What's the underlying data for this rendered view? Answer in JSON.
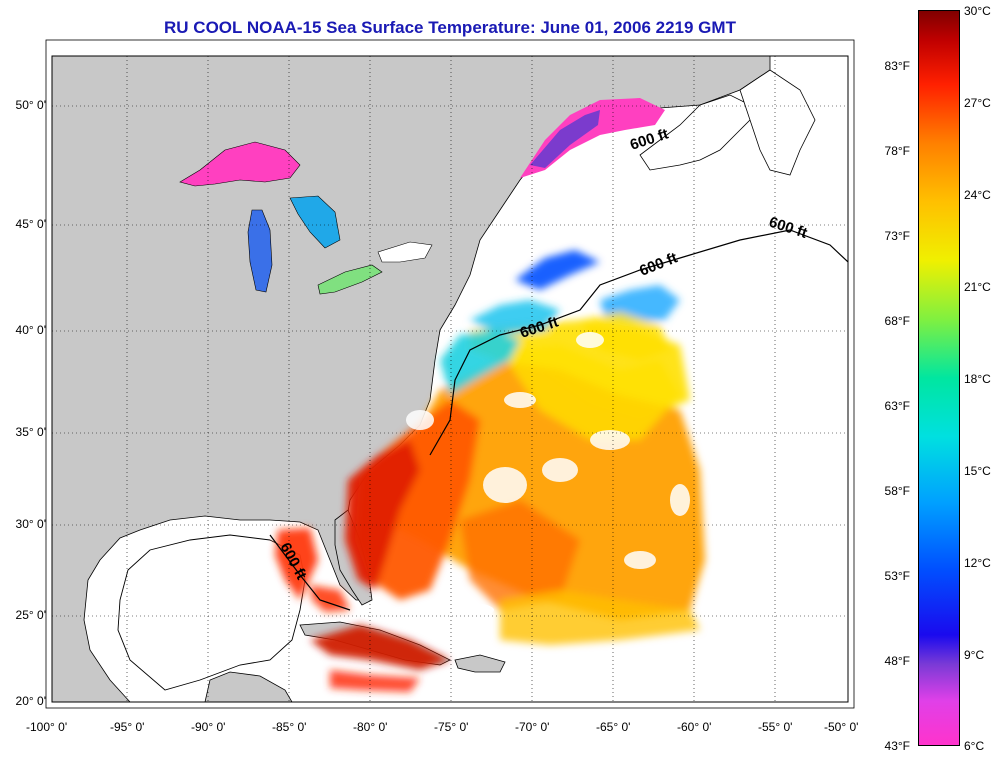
{
  "title": "RU COOL  NOAA-15  Sea Surface Temperature:  June 01, 2006 2219 GMT",
  "lat_labels": [
    "50° 0'",
    "45° 0'",
    "40° 0'",
    "35° 0'",
    "30° 0'",
    "25° 0'",
    "20° 0'"
  ],
  "lon_labels": [
    "-100° 0'",
    "-95° 0'",
    "-90° 0'",
    "-85° 0'",
    "-80° 0'",
    "-75° 0'",
    "-70° 0'",
    "-65° 0'",
    "-60° 0'",
    "-55° 0'",
    "-50° 0'"
  ],
  "depth_labels": [
    "600 ft",
    "600 ft",
    "600 ft",
    "600 ft",
    "600 ft"
  ],
  "colorbar": {
    "fahrenheit": [
      "83°F",
      "78°F",
      "73°F",
      "68°F",
      "63°F",
      "58°F",
      "53°F",
      "48°F",
      "43°F"
    ],
    "celsius": [
      "30°C",
      "27°C",
      "24°C",
      "21°C",
      "18°C",
      "15°C",
      "12°C",
      "9°C",
      "6°C"
    ]
  },
  "colors": {
    "land": "#c8c8c8",
    "ocean": "#ffffff",
    "title": "#1a1ab4"
  }
}
